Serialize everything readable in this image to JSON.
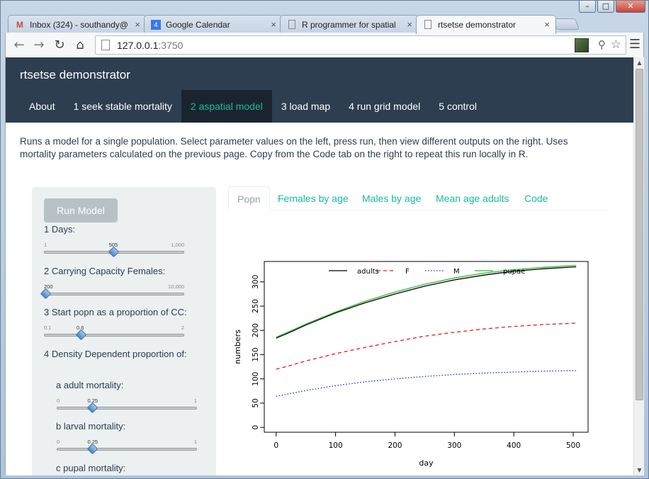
{
  "browser": {
    "tabs": [
      {
        "label": "Inbox (324) - southandy@",
        "icon": "gmail-icon"
      },
      {
        "label": "Google Calendar",
        "icon": "calendar-icon"
      },
      {
        "label": "R programmer for spatial",
        "icon": "page-icon"
      },
      {
        "label": "rtsetse demonstrator",
        "icon": "page-icon"
      }
    ],
    "url_host": "127.0.0.1",
    "url_port": ":3750"
  },
  "app": {
    "brand": "rtsetse demonstrator",
    "nav": [
      "About",
      "1 seek stable mortality",
      "2 aspatial model",
      "3 load map",
      "4 run grid model",
      "5 control"
    ],
    "active_nav": "2 aspatial model",
    "intro": "Runs a model for a single population. Select parameter values on the left, press run, then view different outputs on the right. Uses mortality parameters calculated on the previous page. Copy from the Code tab on the right to repeat this run locally in R."
  },
  "sidebar": {
    "run_button": "Run Model",
    "days": {
      "label": "1 Days:",
      "min": "1",
      "max": "1,000",
      "value": "505",
      "fraction": 0.504
    },
    "capacity": {
      "label": "2 Carrying Capacity Females:",
      "min": "",
      "max": "10,000",
      "value": "200",
      "fraction": 0.0
    },
    "start_popn": {
      "label": "3 Start popn as a proportion of CC:",
      "min": "0.1",
      "max": "2",
      "value": "0.6",
      "fraction": 0.263
    },
    "density_header": "4 Density Dependent proportion of:",
    "adult_mort": {
      "label": "a adult mortality:",
      "min": "0",
      "max": "1",
      "value": "0.25",
      "fraction": 0.25
    },
    "larval_mort": {
      "label": "b larval mortality:",
      "min": "0",
      "max": "1",
      "value": "0.25",
      "fraction": 0.25
    },
    "pupal_mort": {
      "label": "c pupal mortality:"
    }
  },
  "main": {
    "tabs": [
      "Popn",
      "Females by age",
      "Males by age",
      "Mean age adults",
      "Code"
    ],
    "active_tab": "Popn"
  },
  "chart_data": {
    "type": "line",
    "xlabel": "day",
    "ylabel": "numbers",
    "xlim": [
      -20,
      525
    ],
    "ylim": [
      -10,
      342
    ],
    "xticks": [
      0,
      100,
      200,
      300,
      400,
      500
    ],
    "yticks": [
      0,
      50,
      100,
      150,
      200,
      250,
      300
    ],
    "legend_position": "top",
    "series": [
      {
        "name": "adults",
        "color": "#000000",
        "dash": "",
        "x": [
          0,
          25,
          50,
          100,
          150,
          200,
          250,
          300,
          350,
          400,
          450,
          505
        ],
        "y": [
          184,
          197,
          211,
          236,
          257,
          275,
          291,
          304,
          314,
          322,
          327,
          331
        ]
      },
      {
        "name": "F",
        "color": "#e41a1c",
        "dash": "5,4",
        "x": [
          0,
          25,
          50,
          100,
          150,
          200,
          250,
          300,
          350,
          400,
          450,
          505
        ],
        "y": [
          120,
          128,
          137,
          152,
          165,
          177,
          188,
          196,
          203,
          208,
          212,
          215
        ]
      },
      {
        "name": "M",
        "color": "#1f2bd6",
        "dash": "1.5,2.5",
        "x": [
          0,
          25,
          50,
          100,
          150,
          200,
          250,
          300,
          350,
          400,
          450,
          505
        ],
        "y": [
          64,
          70,
          76,
          86,
          94,
          100,
          105,
          109,
          112,
          114,
          116,
          117
        ]
      },
      {
        "name": "pupae",
        "color": "#2db82d",
        "dash": "",
        "x": [
          0,
          25,
          50,
          100,
          150,
          200,
          250,
          300,
          350,
          400,
          450,
          505
        ],
        "y": [
          186,
          199,
          213,
          238,
          260,
          279,
          295,
          308,
          318,
          325,
          330,
          334
        ]
      }
    ]
  }
}
